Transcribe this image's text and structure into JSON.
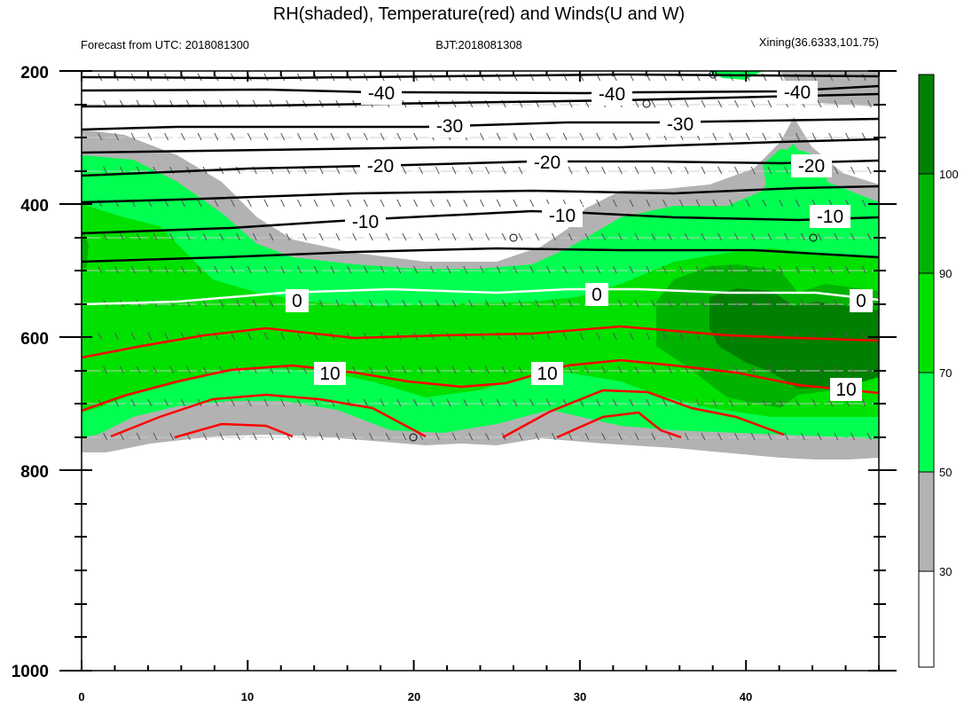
{
  "chart_data": {
    "type": "contour",
    "title": "RH(shaded), Temperature(red) and Winds(U and W)",
    "subtitle_left": "Forecast from UTC: 2018081300",
    "subtitle_center": "BJT:2018081308",
    "subtitle_right": "Xining(36.6333,101.75)",
    "x_ticks": [
      "0",
      "10",
      "20",
      "30",
      "40"
    ],
    "xlim": [
      0,
      48
    ],
    "y_ticks": [
      "200",
      "400",
      "600",
      "800",
      "1000"
    ],
    "ylim": [
      1000,
      200
    ],
    "colorbar_ticks": [
      "30",
      "50",
      "70",
      "90",
      "100"
    ],
    "rh_levels": [
      {
        "min": 0,
        "max": 30,
        "color": "#ffffff"
      },
      {
        "min": 30,
        "max": 50,
        "color": "#b2b2b2"
      },
      {
        "min": 50,
        "max": 70,
        "color": "#00ff50"
      },
      {
        "min": 70,
        "max": 90,
        "color": "#00e100"
      },
      {
        "min": 90,
        "max": 100,
        "color": "#00b300"
      },
      {
        "min": 100,
        "max": 110,
        "color": "#008000"
      }
    ],
    "temperature_contours": [
      {
        "label": "-40",
        "color": "black",
        "points": [
          [
            0,
            230
          ],
          [
            12,
            227
          ],
          [
            24,
            226
          ],
          [
            36,
            228
          ],
          [
            48,
            225
          ]
        ]
      },
      {
        "label": "-30",
        "color": "black",
        "points": [
          [
            0,
            285
          ],
          [
            12,
            280
          ],
          [
            24,
            283
          ],
          [
            36,
            280
          ],
          [
            48,
            273
          ]
        ]
      },
      {
        "label": "-20",
        "color": "black",
        "points": [
          [
            0,
            358
          ],
          [
            12,
            348
          ],
          [
            24,
            345
          ],
          [
            36,
            343
          ],
          [
            48,
            336
          ]
        ]
      },
      {
        "label": "-10",
        "color": "black",
        "points": [
          [
            0,
            440
          ],
          [
            12,
            430
          ],
          [
            24,
            424
          ],
          [
            36,
            428
          ],
          [
            48,
            430
          ]
        ]
      },
      {
        "label": "0",
        "color": "white",
        "points": [
          [
            0,
            548
          ],
          [
            12,
            532
          ],
          [
            24,
            538
          ],
          [
            36,
            532
          ],
          [
            48,
            540
          ]
        ]
      },
      {
        "label": "10",
        "color": "red",
        "points": [
          [
            0,
            688
          ],
          [
            12,
            650
          ],
          [
            24,
            660
          ],
          [
            36,
            652
          ],
          [
            48,
            688
          ]
        ]
      }
    ],
    "wind_levels_hpa": [
      200,
      250,
      300,
      350,
      400,
      450,
      500,
      550,
      600,
      650,
      700,
      750
    ]
  },
  "colors": {
    "temperature_line": "#ff0000",
    "temperature_line_cold": "#000000",
    "freezing_line": "#ffffff",
    "wind_barb": "#808080"
  }
}
